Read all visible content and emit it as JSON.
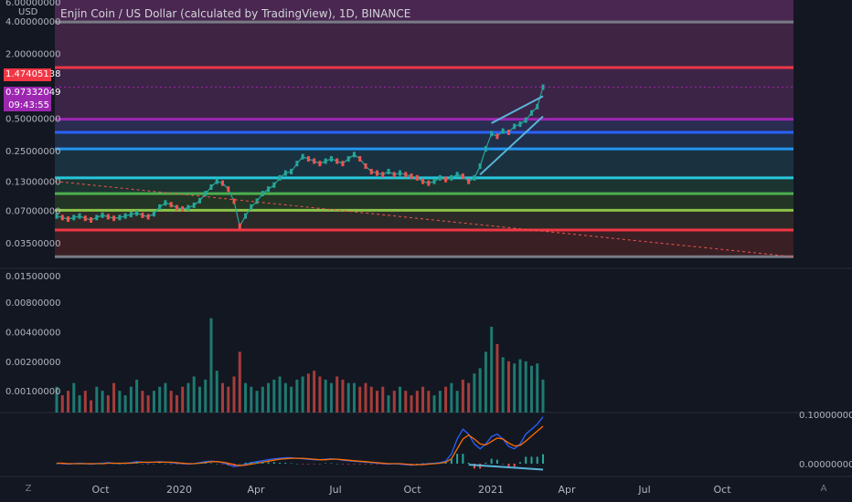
{
  "title": "Enjin Coin / US Dollar (calculated by TradingView), 1D, BINANCE",
  "currency": "USD",
  "corner_left": "Z",
  "corner_right": "A",
  "price_badges": {
    "red_level": "1.47405138",
    "last_price": "0.97332049",
    "countdown": "09:43:55"
  },
  "colors": {
    "background": "#131722",
    "up": "#26a69a",
    "down": "#ef5350",
    "accent_purple": "#9c27b0"
  },
  "chart_data": [
    {
      "type": "line",
      "pane": "price",
      "title": "Enjin Coin / US Dollar (calculated by TradingView), 1D, BINANCE",
      "scale": "log",
      "y_ticks": [
        "6.00000000",
        "4.00000000",
        "2.00000000",
        "0.50000000",
        "0.25000000",
        "0.13000000",
        "0.07000000",
        "0.03500000"
      ],
      "x_ticks": [
        "Oct",
        "2020",
        "Apr",
        "Jul",
        "Oct",
        "2021",
        "Apr",
        "Jul",
        "Oct"
      ],
      "horizontal_levels": [
        {
          "value": 3.9,
          "color": "#787b86"
        },
        {
          "value": 1.47405138,
          "color": "#f23645"
        },
        {
          "value": 0.49,
          "color": "#9c27b0"
        },
        {
          "value": 0.37,
          "color": "#2962ff"
        },
        {
          "value": 0.26,
          "color": "#2196f3"
        },
        {
          "value": 0.14,
          "color": "#26c6da"
        },
        {
          "value": 0.1,
          "color": "#4caf50"
        },
        {
          "value": 0.07,
          "color": "#8bc34a"
        },
        {
          "value": 0.046,
          "color": "#f23645"
        },
        {
          "value": 0.026,
          "color": "#787b86"
        }
      ],
      "series": [
        {
          "values": [
            0.062,
            0.06,
            0.058,
            0.06,
            0.062,
            0.059,
            0.057,
            0.06,
            0.063,
            0.061,
            0.059,
            0.06,
            0.062,
            0.064,
            0.066,
            0.063,
            0.061,
            0.065,
            0.075,
            0.082,
            0.079,
            0.074,
            0.072,
            0.074,
            0.078,
            0.086,
            0.1,
            0.115,
            0.13,
            0.125,
            0.11,
            0.085,
            0.05,
            0.062,
            0.075,
            0.085,
            0.1,
            0.11,
            0.12,
            0.14,
            0.155,
            0.16,
            0.19,
            0.22,
            0.21,
            0.2,
            0.19,
            0.2,
            0.21,
            0.2,
            0.19,
            0.21,
            0.23,
            0.21,
            0.18,
            0.16,
            0.155,
            0.15,
            0.16,
            0.15,
            0.155,
            0.15,
            0.145,
            0.14,
            0.13,
            0.125,
            0.13,
            0.14,
            0.135,
            0.14,
            0.15,
            0.145,
            0.13,
            0.14,
            0.18,
            0.26,
            0.36,
            0.34,
            0.38,
            0.37,
            0.42,
            0.44,
            0.48,
            0.56,
            0.64,
            0.97
          ]
        }
      ]
    },
    {
      "type": "bar",
      "pane": "volume",
      "scale": "log",
      "y_ticks": [
        "0.01500000",
        "0.00800000",
        "0.00400000",
        "0.00200000",
        "0.00100000"
      ],
      "series": [
        {
          "values": [
            0.0011,
            0.0009,
            0.001,
            0.0012,
            0.0009,
            0.001,
            0.0008,
            0.0011,
            0.001,
            0.0009,
            0.0012,
            0.001,
            0.0009,
            0.0011,
            0.0013,
            0.001,
            0.0009,
            0.001,
            0.0011,
            0.0012,
            0.001,
            0.0009,
            0.0011,
            0.0012,
            0.0014,
            0.0011,
            0.0013,
            0.0055,
            0.0016,
            0.0012,
            0.0011,
            0.0014,
            0.0025,
            0.0012,
            0.0011,
            0.001,
            0.0011,
            0.0012,
            0.0013,
            0.0014,
            0.0012,
            0.0011,
            0.0013,
            0.0014,
            0.0015,
            0.0016,
            0.0014,
            0.0013,
            0.0012,
            0.0014,
            0.0013,
            0.0012,
            0.0012,
            0.0011,
            0.0012,
            0.0011,
            0.001,
            0.0011,
            0.0009,
            0.001,
            0.0011,
            0.001,
            0.0009,
            0.001,
            0.0011,
            0.001,
            0.0009,
            0.001,
            0.0011,
            0.0012,
            0.001,
            0.0013,
            0.0012,
            0.0015,
            0.0017,
            0.0025,
            0.0045,
            0.003,
            0.0022,
            0.002,
            0.0019,
            0.0021,
            0.002,
            0.0018,
            0.0019,
            0.0013
          ]
        }
      ]
    },
    {
      "type": "line",
      "pane": "indicator",
      "y_ticks": [
        "0.10000000",
        "0.00000000"
      ],
      "series": [
        {
          "color": "#2962ff",
          "values": [
            0.001,
            0.0,
            -0.001,
            0.0,
            0.001,
            0.0,
            -0.001,
            0.0,
            0.001,
            0.002,
            0.001,
            0.0,
            0.001,
            0.002,
            0.004,
            0.003,
            0.002,
            0.003,
            0.004,
            0.003,
            0.002,
            0.001,
            0.0,
            -0.001,
            0.0,
            0.002,
            0.004,
            0.005,
            0.004,
            0.002,
            -0.002,
            -0.006,
            -0.004,
            -0.001,
            0.002,
            0.004,
            0.006,
            0.008,
            0.01,
            0.011,
            0.012,
            0.012,
            0.011,
            0.01,
            0.009,
            0.008,
            0.008,
            0.009,
            0.01,
            0.009,
            0.007,
            0.006,
            0.005,
            0.004,
            0.003,
            0.002,
            0.001,
            0.0,
            -0.001,
            0.0,
            -0.001,
            -0.002,
            -0.003,
            -0.002,
            -0.001,
            0.0,
            0.001,
            0.002,
            0.005,
            0.02,
            0.05,
            0.07,
            0.06,
            0.04,
            0.03,
            0.04,
            0.055,
            0.06,
            0.05,
            0.035,
            0.03,
            0.04,
            0.06,
            0.07,
            0.08,
            0.095
          ]
        },
        {
          "color": "#ff6d00",
          "values": [
            0.001,
            0.001,
            0.0,
            0.0,
            0.0,
            0.0,
            0.0,
            0.0,
            0.0,
            0.001,
            0.001,
            0.001,
            0.001,
            0.001,
            0.002,
            0.003,
            0.003,
            0.003,
            0.003,
            0.003,
            0.003,
            0.002,
            0.001,
            0.0,
            0.0,
            0.001,
            0.002,
            0.004,
            0.004,
            0.003,
            0.001,
            -0.002,
            -0.004,
            -0.003,
            -0.001,
            0.001,
            0.003,
            0.005,
            0.007,
            0.009,
            0.01,
            0.011,
            0.011,
            0.011,
            0.01,
            0.009,
            0.008,
            0.008,
            0.009,
            0.009,
            0.008,
            0.007,
            0.006,
            0.005,
            0.004,
            0.003,
            0.002,
            0.001,
            0.0,
            0.0,
            0.0,
            -0.001,
            -0.002,
            -0.002,
            -0.002,
            -0.001,
            0.0,
            0.001,
            0.003,
            0.01,
            0.03,
            0.05,
            0.058,
            0.05,
            0.04,
            0.038,
            0.045,
            0.052,
            0.05,
            0.042,
            0.036,
            0.037,
            0.046,
            0.056,
            0.066,
            0.076
          ]
        }
      ]
    }
  ]
}
